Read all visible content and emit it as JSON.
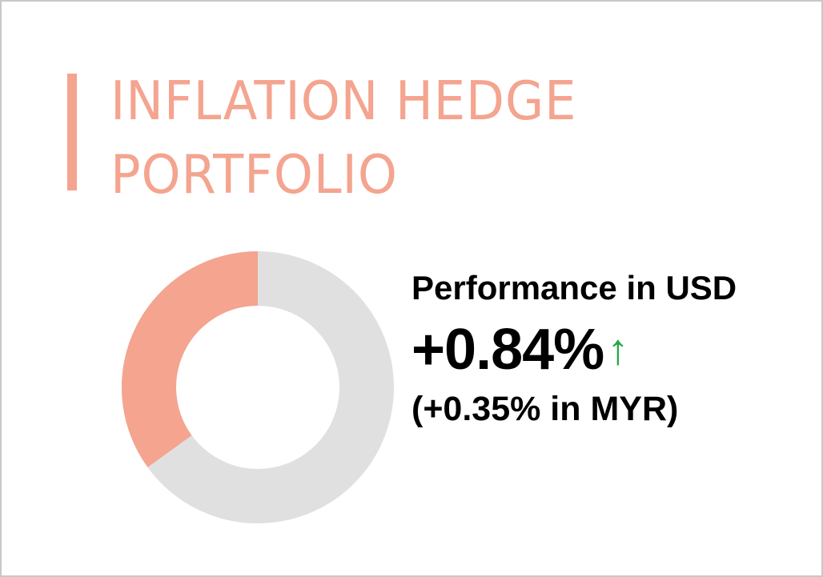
{
  "title": {
    "line1": "INFLATION HEDGE",
    "line2": "PORTFOLIO"
  },
  "donut": {
    "highlight_fraction": 0.35,
    "highlight_color": "#f4a48f",
    "track_color": "#e0e0e0"
  },
  "performance": {
    "label": "Performance in USD",
    "value": "+0.84%",
    "arrow_icon": "↑",
    "arrow_color": "#22a845",
    "secondary": "(+0.35% in MYR)"
  }
}
